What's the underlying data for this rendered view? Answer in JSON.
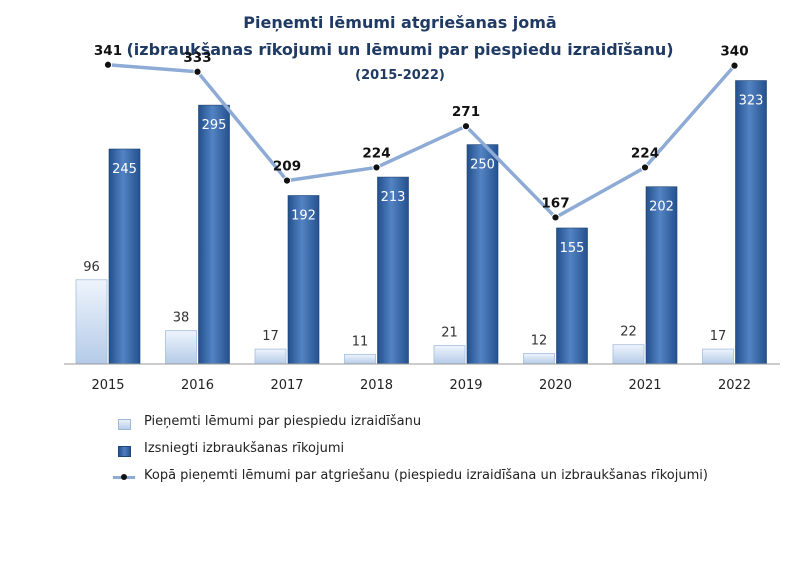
{
  "chart_data": {
    "type": "bar",
    "title": "Pieņemti lēmumi atgriešanas jomā",
    "subtitle": "(izbraukšanas rīkojumi un lēmumi par piespiedu izraidīšanu)",
    "period": "(2015-2022)",
    "categories": [
      "2015",
      "2016",
      "2017",
      "2018",
      "2019",
      "2020",
      "2021",
      "2022"
    ],
    "series": [
      {
        "name": "Pieņemti lēmumi par piespiedu izraidīšanu",
        "type": "bar",
        "color": "#c9dcf1",
        "values": [
          96,
          38,
          17,
          11,
          21,
          12,
          22,
          17
        ]
      },
      {
        "name": "Izsniegti izbraukšanas rīkojumi",
        "type": "bar",
        "color": "#3a6aa8",
        "values": [
          245,
          295,
          192,
          213,
          250,
          155,
          202,
          323
        ]
      },
      {
        "name": "Kopā pieņemti lēmumi par atgriešanu (piespiedu izraidīšana un izbraukšanas rīkojumi)",
        "type": "line",
        "color": "#8eabd6",
        "values": [
          341,
          333,
          209,
          224,
          271,
          167,
          224,
          340
        ]
      }
    ],
    "ylim": [
      0,
      400
    ],
    "grid": false,
    "legend": "bottom"
  }
}
